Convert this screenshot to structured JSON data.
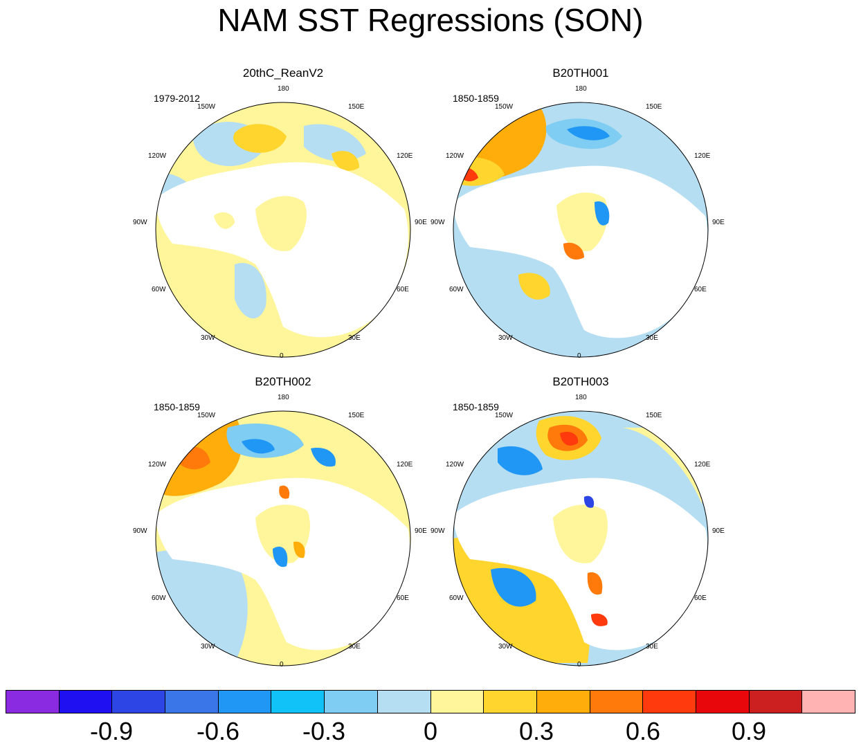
{
  "title": "NAM SST Regressions (SON)",
  "lon_labels": [
    "180",
    "150E",
    "120E",
    "90E",
    "60E",
    "30E",
    "0",
    "30W",
    "60W",
    "90W",
    "120W",
    "150W"
  ],
  "panels": [
    {
      "name": "20thC_ReanV2",
      "period": "1979-2012"
    },
    {
      "name": "B20TH001",
      "period": "1850-1859"
    },
    {
      "name": "B20TH002",
      "period": "1850-1859"
    },
    {
      "name": "B20TH003",
      "period": "1850-1859"
    }
  ],
  "colorbar": {
    "colors": [
      "#8a2be2",
      "#1e10f0",
      "#2e45e6",
      "#3a76e8",
      "#2197f5",
      "#10c2f8",
      "#7fcdf2",
      "#b5def2",
      "#fff59a",
      "#ffd52e",
      "#ffad0a",
      "#ff7a0a",
      "#ff3a0c",
      "#e8070a",
      "#cc1f1f",
      "#ffb3b3"
    ],
    "labels": [
      "-0.9",
      "-0.6",
      "-0.3",
      "0",
      "0.3",
      "0.6",
      "0.9"
    ]
  },
  "palette": {
    "land": "#ffffff",
    "coast": "#707070",
    "neg1": "#b5def2",
    "neg2": "#7fcdf2",
    "neg3": "#2197f5",
    "neg4": "#2e45e6",
    "pos1": "#fff59a",
    "pos2": "#ffd52e",
    "pos3": "#ffad0a",
    "pos4": "#ff7a0a",
    "pos5": "#ff3a0c",
    "pos6": "#e8070a"
  }
}
